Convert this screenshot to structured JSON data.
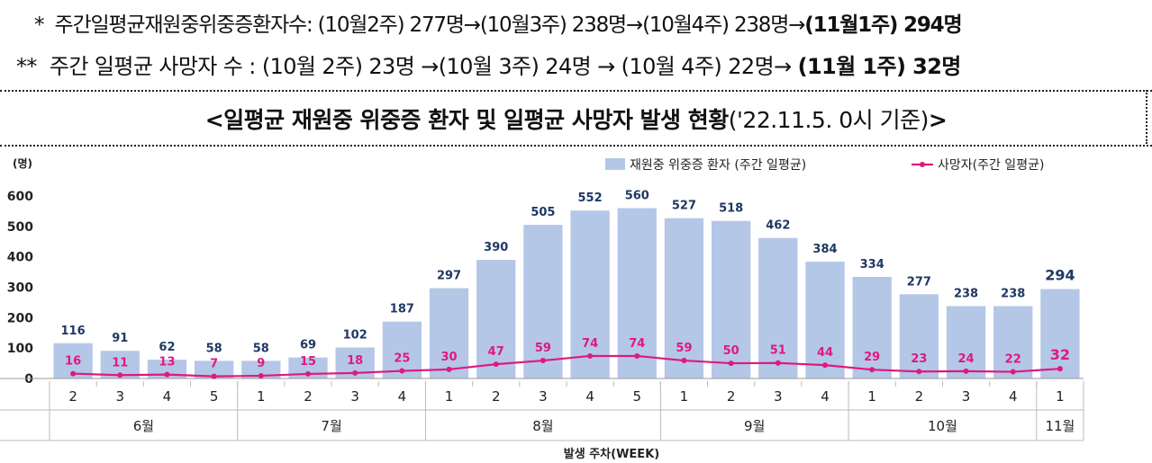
{
  "notes": {
    "line1_marker": "*",
    "line1_text": "주간일평균재원중위중증환자수: (10월2주) 277명→(10월3주) 238명→(10월4주) 238명→",
    "line1_bold": "(11월1주) 294명",
    "line2_marker": "**",
    "line2_text": "주간 일평균 사망자 수 : (10월 2주) 23명 →(10월 3주) 24명 → (10월 4주) 22명→ ",
    "line2_bold": "(11월 1주) 32명"
  },
  "title": {
    "main": "<일평균 재원중 위중증 환자 및 일평균 사망자 발생 현황",
    "date": "('22.11.5. 0시 기준)",
    "close": ">"
  },
  "colors": {
    "bar": "#b4c7e7",
    "bar_label": "#1f3864",
    "line": "#e0187f",
    "line_label": "#e0187f"
  },
  "chart_data": {
    "type": "bar",
    "ylabel": "(명)",
    "xlabel": "발생 주차(WEEK)",
    "ylim": [
      0,
      600
    ],
    "yticks": [
      "0",
      "100",
      "200",
      "300",
      "400",
      "500",
      "600"
    ],
    "weeks": [
      "2",
      "3",
      "4",
      "5",
      "1",
      "2",
      "3",
      "4",
      "1",
      "2",
      "3",
      "4",
      "5",
      "1",
      "2",
      "3",
      "4",
      "1",
      "2",
      "3",
      "4",
      "1"
    ],
    "months": [
      {
        "label": "6월",
        "count": 4
      },
      {
        "label": "7월",
        "count": 4
      },
      {
        "label": "8월",
        "count": 5
      },
      {
        "label": "9월",
        "count": 4
      },
      {
        "label": "10월",
        "count": 4
      },
      {
        "label": "11월",
        "count": 1
      }
    ],
    "series": [
      {
        "name": "재원중 위중증 환자 (주간 일평균)",
        "type": "bar",
        "values": [
          116,
          91,
          62,
          58,
          58,
          69,
          102,
          187,
          297,
          390,
          505,
          552,
          560,
          527,
          518,
          462,
          384,
          334,
          277,
          238,
          238,
          294
        ]
      },
      {
        "name": "사망자(주간 일평균)",
        "type": "line",
        "values": [
          16,
          11,
          13,
          7,
          9,
          15,
          18,
          25,
          30,
          47,
          59,
          74,
          74,
          59,
          50,
          51,
          44,
          29,
          23,
          24,
          22,
          32
        ]
      }
    ],
    "legend_position": "top-right"
  }
}
